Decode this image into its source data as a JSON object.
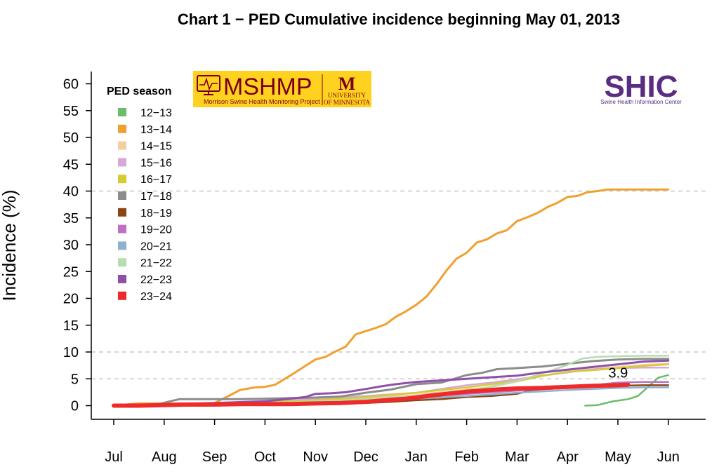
{
  "chart_data": {
    "type": "line",
    "title": "Chart 1 − PED Cumulative incidence beginning May 01, 2013",
    "xlabel": "",
    "ylabel": "Incidence (%)",
    "x_tick_labels": [
      "Jul",
      "Aug",
      "Sep",
      "Oct",
      "Nov",
      "Dec",
      "Jan",
      "Feb",
      "Mar",
      "Apr",
      "May",
      "Jun"
    ],
    "ylim": [
      0,
      60
    ],
    "y_ticks": [
      0,
      5,
      10,
      15,
      20,
      25,
      30,
      35,
      40,
      45,
      50,
      55,
      60
    ],
    "reference_lines": [
      5,
      10,
      40
    ],
    "legend_title": "PED season",
    "legend_position": "top-left",
    "annotation": {
      "text": "3.9",
      "x": 10.2,
      "y": 3.9
    },
    "series": [
      {
        "name": "12−13",
        "color": "#6dbb6d",
        "width": 2.5,
        "points": [
          [
            9.35,
            0
          ],
          [
            9.6,
            0.1
          ],
          [
            9.9,
            0.8
          ],
          [
            10.2,
            1.2
          ],
          [
            10.4,
            1.8
          ],
          [
            10.6,
            3.5
          ],
          [
            10.8,
            5.2
          ],
          [
            11,
            5.7
          ]
        ]
      },
      {
        "name": "13−14",
        "color": "#f0a030",
        "width": 3,
        "points": [
          [
            0,
            0
          ],
          [
            0.5,
            0.4
          ],
          [
            1,
            0.4
          ],
          [
            1.5,
            0.4
          ],
          [
            2,
            0.5
          ],
          [
            2.3,
            1.9
          ],
          [
            2.5,
            2.9
          ],
          [
            2.8,
            3.4
          ],
          [
            3,
            3.5
          ],
          [
            3.2,
            3.9
          ],
          [
            3.5,
            5.6
          ],
          [
            3.8,
            7.4
          ],
          [
            4,
            8.6
          ],
          [
            4.2,
            9.1
          ],
          [
            4.4,
            10.1
          ],
          [
            4.6,
            11
          ],
          [
            4.8,
            13.3
          ],
          [
            5,
            13.9
          ],
          [
            5.2,
            14.5
          ],
          [
            5.4,
            15.2
          ],
          [
            5.6,
            16.6
          ],
          [
            5.8,
            17.6
          ],
          [
            6,
            18.8
          ],
          [
            6.2,
            20.3
          ],
          [
            6.4,
            22.6
          ],
          [
            6.6,
            25.2
          ],
          [
            6.8,
            27.4
          ],
          [
            7,
            28.5
          ],
          [
            7.2,
            30.4
          ],
          [
            7.4,
            31
          ],
          [
            7.6,
            32.1
          ],
          [
            7.8,
            32.7
          ],
          [
            8,
            34.4
          ],
          [
            8.2,
            35.1
          ],
          [
            8.4,
            35.9
          ],
          [
            8.6,
            37
          ],
          [
            8.8,
            37.8
          ],
          [
            9,
            38.9
          ],
          [
            9.2,
            39.1
          ],
          [
            9.4,
            39.8
          ],
          [
            9.6,
            40
          ],
          [
            9.8,
            40.3
          ],
          [
            10,
            40.3
          ],
          [
            10.5,
            40.3
          ],
          [
            11,
            40.3
          ]
        ]
      },
      {
        "name": "14−15",
        "color": "#f2cfa0",
        "width": 2.5,
        "points": [
          [
            0,
            0
          ],
          [
            1,
            0.2
          ],
          [
            2,
            0.4
          ],
          [
            3,
            0.6
          ],
          [
            4,
            0.9
          ],
          [
            5,
            1.4
          ],
          [
            6,
            2
          ],
          [
            7,
            3
          ],
          [
            7.5,
            3.5
          ],
          [
            8,
            4.5
          ],
          [
            8.5,
            5.5
          ],
          [
            9,
            6.3
          ],
          [
            9.5,
            6.8
          ],
          [
            10,
            7.2
          ],
          [
            10.5,
            7.6
          ],
          [
            11,
            7.8
          ]
        ]
      },
      {
        "name": "15−16",
        "color": "#d8a8d8",
        "width": 2.5,
        "points": [
          [
            0,
            0
          ],
          [
            1,
            0.2
          ],
          [
            2,
            0.5
          ],
          [
            3,
            0.9
          ],
          [
            4,
            1.3
          ],
          [
            5,
            1.8
          ],
          [
            6,
            2.4
          ],
          [
            7,
            3.8
          ],
          [
            7.5,
            4.3
          ],
          [
            8,
            4.9
          ],
          [
            8.5,
            5.6
          ],
          [
            9,
            6.2
          ],
          [
            9.5,
            6.8
          ],
          [
            10,
            7
          ],
          [
            10.5,
            7.1
          ],
          [
            11,
            7.1
          ]
        ]
      },
      {
        "name": "16−17",
        "color": "#d4cc30",
        "width": 2.5,
        "points": [
          [
            0,
            0
          ],
          [
            1,
            0.2
          ],
          [
            2,
            0.4
          ],
          [
            3,
            0.7
          ],
          [
            4,
            1
          ],
          [
            5,
            1.6
          ],
          [
            6,
            2.4
          ],
          [
            7,
            3.4
          ],
          [
            7.5,
            4
          ],
          [
            8,
            4.6
          ],
          [
            8.5,
            5.6
          ],
          [
            9,
            6.3
          ],
          [
            9.5,
            6.6
          ],
          [
            10,
            7
          ],
          [
            10.5,
            7.4
          ],
          [
            11,
            7.7
          ]
        ]
      },
      {
        "name": "17−18",
        "color": "#8c8c8c",
        "width": 3,
        "points": [
          [
            0,
            0
          ],
          [
            0.8,
            0.1
          ],
          [
            1.3,
            1.2
          ],
          [
            2,
            1.2
          ],
          [
            2.5,
            1.2
          ],
          [
            3,
            1.3
          ],
          [
            3.5,
            1.4
          ],
          [
            4,
            1.5
          ],
          [
            4.5,
            1.7
          ],
          [
            5,
            2.4
          ],
          [
            5.5,
            3
          ],
          [
            6,
            4
          ],
          [
            6.5,
            4.3
          ],
          [
            7,
            5.7
          ],
          [
            7.3,
            6.1
          ],
          [
            7.6,
            6.8
          ],
          [
            8,
            7
          ],
          [
            8.5,
            7.3
          ],
          [
            9,
            7.8
          ],
          [
            9.5,
            8.3
          ],
          [
            10,
            8.6
          ],
          [
            10.5,
            8.7
          ],
          [
            11,
            8.7
          ]
        ]
      },
      {
        "name": "18−19",
        "color": "#8b4513",
        "width": 2.5,
        "points": [
          [
            0,
            0
          ],
          [
            1,
            0.1
          ],
          [
            2,
            0.2
          ],
          [
            3,
            0.3
          ],
          [
            4,
            0.4
          ],
          [
            5,
            0.5
          ],
          [
            5.5,
            0.7
          ],
          [
            6,
            1
          ],
          [
            6.5,
            1.2
          ],
          [
            7,
            1.6
          ],
          [
            7.5,
            1.8
          ],
          [
            8,
            2.2
          ],
          [
            8.3,
            2.9
          ],
          [
            8.6,
            3.1
          ],
          [
            9,
            3.3
          ],
          [
            9.5,
            3.6
          ],
          [
            10,
            3.7
          ],
          [
            10.5,
            3.8
          ],
          [
            11,
            3.8
          ]
        ]
      },
      {
        "name": "19−20",
        "color": "#c070c0",
        "width": 2.5,
        "points": [
          [
            0,
            0
          ],
          [
            1,
            0.1
          ],
          [
            2,
            0.2
          ],
          [
            3,
            0.4
          ],
          [
            4,
            0.6
          ],
          [
            5,
            1
          ],
          [
            6,
            1.6
          ],
          [
            7,
            2.2
          ],
          [
            8,
            2.8
          ],
          [
            9,
            3.4
          ],
          [
            9.5,
            3.8
          ],
          [
            10,
            4.3
          ],
          [
            10.5,
            4.4
          ],
          [
            11,
            4.4
          ]
        ]
      },
      {
        "name": "20−21",
        "color": "#90b0d0",
        "width": 2.5,
        "points": [
          [
            0,
            0
          ],
          [
            1,
            0.1
          ],
          [
            2,
            0.2
          ],
          [
            3,
            0.4
          ],
          [
            4,
            0.6
          ],
          [
            5,
            0.9
          ],
          [
            6,
            1.3
          ],
          [
            7,
            1.8
          ],
          [
            8,
            2.4
          ],
          [
            9,
            2.9
          ],
          [
            9.5,
            3.1
          ],
          [
            10,
            3.3
          ],
          [
            10.5,
            3.4
          ],
          [
            11,
            3.4
          ]
        ]
      },
      {
        "name": "21−22",
        "color": "#b5ddb0",
        "width": 2.5,
        "points": [
          [
            0,
            0
          ],
          [
            1,
            0.1
          ],
          [
            2,
            0.3
          ],
          [
            3,
            0.5
          ],
          [
            4,
            0.8
          ],
          [
            5,
            1.2
          ],
          [
            6,
            1.8
          ],
          [
            7,
            2.6
          ],
          [
            7.5,
            3.6
          ],
          [
            8,
            4.6
          ],
          [
            8.5,
            6
          ],
          [
            9,
            7.6
          ],
          [
            9.3,
            8.8
          ],
          [
            9.6,
            9.1
          ],
          [
            10,
            9.2
          ],
          [
            10.5,
            9.3
          ],
          [
            11,
            9.3
          ]
        ]
      },
      {
        "name": "22−23",
        "color": "#9050a8",
        "width": 3,
        "points": [
          [
            0,
            0
          ],
          [
            1,
            0.2
          ],
          [
            2,
            0.5
          ],
          [
            3,
            0.8
          ],
          [
            3.5,
            1.3
          ],
          [
            3.8,
            1.6
          ],
          [
            4,
            2.2
          ],
          [
            4.3,
            2.3
          ],
          [
            4.6,
            2.5
          ],
          [
            5,
            3.1
          ],
          [
            5.3,
            3.6
          ],
          [
            5.6,
            4
          ],
          [
            6,
            4.4
          ],
          [
            6.5,
            4.7
          ],
          [
            7,
            5
          ],
          [
            7.5,
            5.3
          ],
          [
            8,
            5.6
          ],
          [
            8.5,
            6.2
          ],
          [
            9,
            6.7
          ],
          [
            9.5,
            7.2
          ],
          [
            10,
            7.7
          ],
          [
            10.5,
            8.2
          ],
          [
            11,
            8.4
          ]
        ]
      },
      {
        "name": "23−24",
        "color": "#ee2a2a",
        "width": 6,
        "points": [
          [
            0,
            0
          ],
          [
            0.5,
            0
          ],
          [
            1,
            0.1
          ],
          [
            1.5,
            0.2
          ],
          [
            2,
            0.2
          ],
          [
            2.5,
            0.3
          ],
          [
            3,
            0.3
          ],
          [
            3.5,
            0.3
          ],
          [
            4,
            0.4
          ],
          [
            4.5,
            0.5
          ],
          [
            5,
            0.7
          ],
          [
            5.5,
            1.1
          ],
          [
            5.8,
            1.3
          ],
          [
            6,
            1.5
          ],
          [
            6.3,
            1.9
          ],
          [
            6.6,
            2.2
          ],
          [
            7,
            2.6
          ],
          [
            7.3,
            2.8
          ],
          [
            7.6,
            3
          ],
          [
            8,
            3.2
          ],
          [
            8.5,
            3.3
          ],
          [
            9,
            3.5
          ],
          [
            9.5,
            3.7
          ],
          [
            10,
            3.8
          ],
          [
            10.2,
            3.9
          ]
        ]
      }
    ]
  },
  "logos": {
    "mshmp": {
      "name": "MSHMP",
      "subtitle": "Morrison Swine Health Monitoring Project",
      "university_line1": "UNIVERSITY",
      "university_line2": "OF MINNESOTA",
      "bg_color": "#ffd21f",
      "fg_color": "#7a0019"
    },
    "shic": {
      "name": "SHIC",
      "subtitle": "Swine Health Information Center",
      "color": "#5a2d82"
    }
  }
}
